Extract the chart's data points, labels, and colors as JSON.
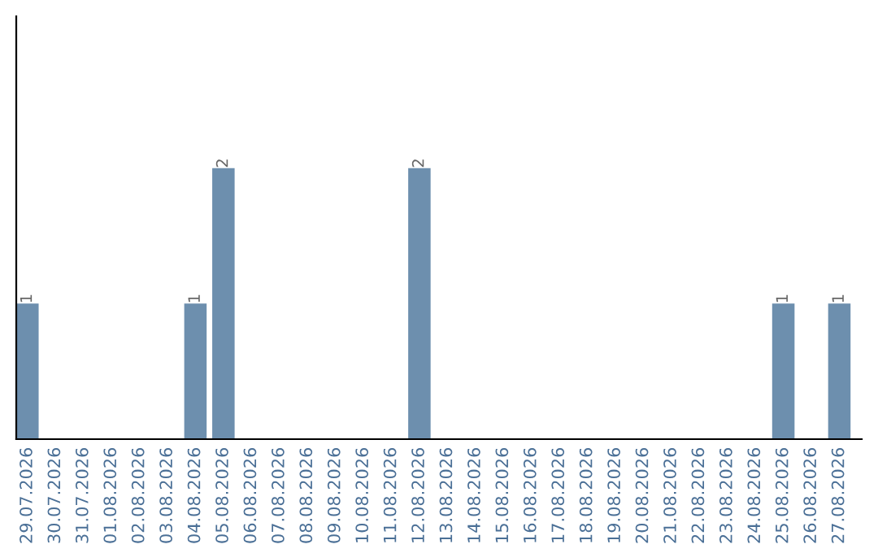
{
  "chart_data": {
    "type": "bar",
    "categories": [
      "29.07.2026",
      "30.07.2026",
      "31.07.2026",
      "01.08.2026",
      "02.08.2026",
      "03.08.2026",
      "04.08.2026",
      "05.08.2026",
      "06.08.2026",
      "07.08.2026",
      "08.08.2026",
      "09.08.2026",
      "10.08.2026",
      "11.08.2026",
      "12.08.2026",
      "13.08.2026",
      "14.08.2026",
      "15.08.2026",
      "16.08.2026",
      "17.08.2026",
      "18.08.2026",
      "19.08.2026",
      "20.08.2026",
      "21.08.2026",
      "22.08.2026",
      "23.08.2026",
      "24.08.2026",
      "25.08.2026",
      "26.08.2026",
      "27.08.2026"
    ],
    "values": [
      1,
      0,
      0,
      0,
      0,
      0,
      1,
      2,
      0,
      0,
      0,
      0,
      0,
      0,
      2,
      0,
      0,
      0,
      0,
      0,
      0,
      0,
      0,
      0,
      0,
      0,
      0,
      1,
      0,
      1
    ],
    "value_labels": [
      "1",
      null,
      null,
      null,
      null,
      null,
      "1",
      "2",
      null,
      null,
      null,
      null,
      null,
      null,
      "2",
      null,
      null,
      null,
      null,
      null,
      null,
      null,
      null,
      null,
      null,
      null,
      null,
      "1",
      null,
      "1"
    ],
    "color": "#6d8fae",
    "tick_labels": "x",
    "grid": false
  }
}
